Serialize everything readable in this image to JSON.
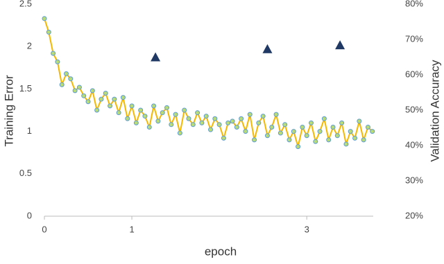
{
  "chart_data": {
    "type": "line",
    "x_label": "epoch",
    "y_label": "Training Error",
    "y2_label": "Validation Accuracy",
    "xlim": [
      0,
      3.76
    ],
    "xticks": [
      0,
      1,
      3
    ],
    "ylim": [
      0,
      2.5
    ],
    "yticks": [
      0,
      0.5,
      1,
      1.5,
      2,
      2.5
    ],
    "y2lim": [
      20,
      80
    ],
    "y2ticks": [
      {
        "value": 20,
        "label": "20%"
      },
      {
        "value": 30,
        "label": "30%"
      },
      {
        "value": 40,
        "label": "40%"
      },
      {
        "value": 50,
        "label": "50%"
      },
      {
        "value": 60,
        "label": "60%"
      },
      {
        "value": 70,
        "label": "70%"
      },
      {
        "value": 80,
        "label": "80%"
      }
    ],
    "grid": false,
    "series": [
      {
        "color": "#f5b800",
        "marker": "circle",
        "marker_fill": "#b9dc74",
        "marker_edge": "#5b9bd5",
        "x": [
          0,
          0.05,
          0.1,
          0.15,
          0.2,
          0.25,
          0.3,
          0.35,
          0.4,
          0.45,
          0.5,
          0.55,
          0.6,
          0.65,
          0.7,
          0.75,
          0.8,
          0.85,
          0.9,
          0.95,
          1,
          1.05,
          1.1,
          1.15,
          1.2,
          1.25,
          1.3,
          1.35,
          1.4,
          1.45,
          1.5,
          1.55,
          1.6,
          1.65,
          1.7,
          1.75,
          1.8,
          1.85,
          1.9,
          1.95,
          2,
          2.05,
          2.1,
          2.15,
          2.2,
          2.25,
          2.3,
          2.35,
          2.4,
          2.45,
          2.5,
          2.55,
          2.6,
          2.65,
          2.7,
          2.75,
          2.8,
          2.85,
          2.9,
          2.95,
          3,
          3.05,
          3.1,
          3.15,
          3.2,
          3.25,
          3.3,
          3.35,
          3.4,
          3.45,
          3.5,
          3.55,
          3.6,
          3.65,
          3.7,
          3.75
        ],
        "values": [
          2.33,
          2.17,
          1.92,
          1.82,
          1.55,
          1.68,
          1.62,
          1.48,
          1.52,
          1.42,
          1.35,
          1.48,
          1.25,
          1.38,
          1.45,
          1.3,
          1.38,
          1.22,
          1.4,
          1.15,
          1.3,
          1.1,
          1.25,
          1.18,
          1.05,
          1.3,
          1.12,
          1.22,
          1.28,
          1.08,
          1.2,
          0.98,
          1.25,
          1.15,
          1.08,
          1.22,
          1.1,
          1.18,
          1.02,
          1.15,
          1.08,
          0.92,
          1.1,
          1.12,
          1.05,
          1.15,
          1.0,
          1.2,
          0.9,
          1.1,
          1.18,
          0.95,
          1.05,
          1.2,
          0.98,
          1.08,
          0.9,
          1.0,
          0.82,
          1.05,
          0.95,
          1.1,
          0.88,
          1.0,
          1.15,
          0.9,
          1.05,
          0.95,
          1.1,
          0.85,
          1.0,
          0.92,
          1.12,
          0.9,
          1.05,
          1.0
        ]
      },
      {
        "color": "#1f3864",
        "marker": "triangle",
        "axis": "y2",
        "x": [
          1.27,
          2.55,
          3.38
        ],
        "values": [
          65,
          67.3,
          68.4
        ]
      }
    ]
  }
}
